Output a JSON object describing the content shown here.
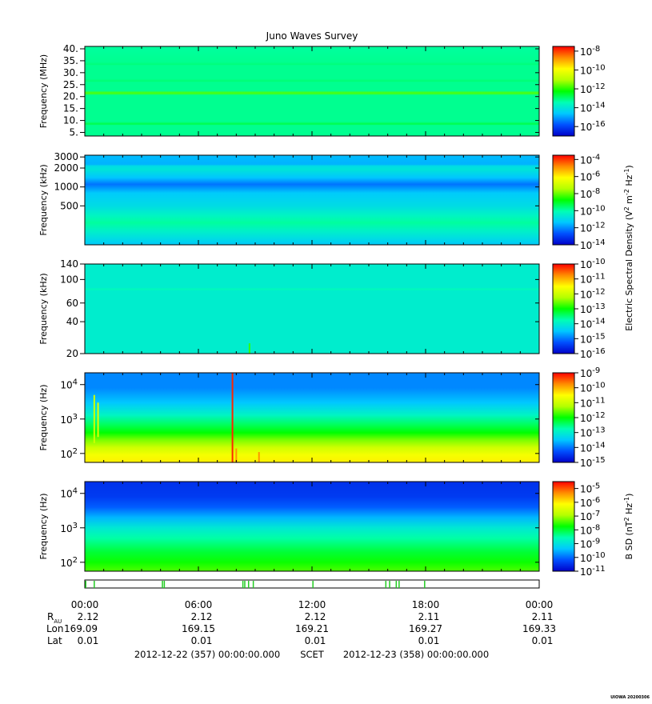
{
  "title": "Juno Waves Survey",
  "watermark": "UIOWA 20200306",
  "colorbar_labels": {
    "e_field": "Electric Spectral Density (V^2 m^-2 Hz^-1)",
    "b_field": "B SD (nT^2 Hz^-1)"
  },
  "palette": [
    "#0000c8",
    "#0050ff",
    "#00c8ff",
    "#00ffb4",
    "#00ff00",
    "#b4ff00",
    "#ffff00",
    "#ff8c00",
    "#ff0000"
  ],
  "chart_data": [
    {
      "type": "heatmap",
      "name": "panel-1",
      "ylabel": "Frequency (MHz)",
      "yscale": "linear",
      "ylim": [
        3.5,
        41
      ],
      "yticks": [
        {
          "v": 40,
          "t": "40."
        },
        {
          "v": 35,
          "t": "35."
        },
        {
          "v": 30,
          "t": "30."
        },
        {
          "v": 25,
          "t": "25."
        },
        {
          "v": 20,
          "t": "20."
        },
        {
          "v": 15,
          "t": "15."
        },
        {
          "v": 10,
          "t": "10."
        },
        {
          "v": 5,
          "t": "5."
        }
      ],
      "colorbar_range": [
        -17,
        -7.5
      ],
      "colorbar_ticks": [
        -8,
        -10,
        -12,
        -14,
        -16
      ],
      "colorbar_label": "",
      "profile": [
        {
          "f": 3.5,
          "v": -13.2
        },
        {
          "f": 8,
          "v": -13.2
        },
        {
          "f": 8.5,
          "v": -12.7
        },
        {
          "f": 9.5,
          "v": -13.2
        },
        {
          "f": 20.5,
          "v": -13.2
        },
        {
          "f": 21.5,
          "v": -11.7
        },
        {
          "f": 22.5,
          "v": -13.2
        },
        {
          "f": 26,
          "v": -13.2
        },
        {
          "f": 26.5,
          "v": -13.0
        },
        {
          "f": 27.5,
          "v": -13.2
        },
        {
          "f": 33,
          "v": -13.2
        },
        {
          "f": 33.5,
          "v": -13.05
        },
        {
          "f": 34.5,
          "v": -13.2
        },
        {
          "f": 41,
          "v": -13.3
        }
      ],
      "events": []
    },
    {
      "type": "heatmap",
      "name": "panel-2",
      "ylabel": "Frequency (kHz)",
      "yscale": "log",
      "ylim": [
        120,
        3200
      ],
      "yticks": [
        {
          "v": 3000,
          "t": "3000"
        },
        {
          "v": 2000,
          "t": "2000"
        },
        {
          "v": 1000,
          "t": "1000"
        },
        {
          "v": 500,
          "t": "500"
        }
      ],
      "colorbar_range": [
        -14,
        -3.5
      ],
      "colorbar_ticks": [
        -4,
        -6,
        -8,
        -10,
        -12,
        -14
      ],
      "colorbar_label": "e_field",
      "profile": [
        {
          "f": 120,
          "v": -11.3
        },
        {
          "f": 200,
          "v": -10.4
        },
        {
          "f": 270,
          "v": -9.9
        },
        {
          "f": 350,
          "v": -10.3
        },
        {
          "f": 500,
          "v": -10.9
        },
        {
          "f": 800,
          "v": -11.3
        },
        {
          "f": 1100,
          "v": -12.3
        },
        {
          "f": 1400,
          "v": -11.4
        },
        {
          "f": 1900,
          "v": -10.7
        },
        {
          "f": 2150,
          "v": -10.9
        },
        {
          "f": 2300,
          "v": -11.6
        },
        {
          "f": 3200,
          "v": -11.5
        }
      ],
      "events": []
    },
    {
      "type": "heatmap",
      "name": "panel-3",
      "ylabel": "Frequency (kHz)",
      "yscale": "log",
      "ylim": [
        20,
        140
      ],
      "yticks": [
        {
          "v": 140,
          "t": "140"
        },
        {
          "v": 100,
          "t": "100"
        },
        {
          "v": 60,
          "t": "60"
        },
        {
          "v": 40,
          "t": "40"
        },
        {
          "v": 20,
          "t": "20"
        }
      ],
      "colorbar_range": [
        -16,
        -10
      ],
      "colorbar_ticks": [
        -10,
        -11,
        -12,
        -13,
        -14,
        -15,
        -16
      ],
      "colorbar_label": "",
      "profile": [
        {
          "f": 20,
          "v": -14.0
        },
        {
          "f": 78,
          "v": -14.0
        },
        {
          "f": 81,
          "v": -13.8
        },
        {
          "f": 84,
          "v": -14.0
        },
        {
          "f": 140,
          "v": -14.0
        }
      ],
      "events": [
        {
          "t": 8.7,
          "fmin": 20,
          "fmax": 25,
          "v": -12.8
        }
      ]
    },
    {
      "type": "heatmap",
      "name": "panel-4",
      "ylabel": "Frequency (Hz)",
      "yscale": "log",
      "ylim": [
        55,
        22000
      ],
      "yticks": [
        {
          "v": 10000,
          "t": "10^4"
        },
        {
          "v": 1000,
          "t": "10^3"
        },
        {
          "v": 100,
          "t": "10^2"
        }
      ],
      "colorbar_range": [
        -15,
        -9
      ],
      "colorbar_ticks": [
        -9,
        -10,
        -11,
        -12,
        -13,
        -14,
        -15
      ],
      "colorbar_label": "",
      "profile": [
        {
          "f": 55,
          "v": -10.4
        },
        {
          "f": 90,
          "v": -10.6
        },
        {
          "f": 150,
          "v": -11.0
        },
        {
          "f": 250,
          "v": -11.5
        },
        {
          "f": 400,
          "v": -12.0
        },
        {
          "f": 700,
          "v": -12.4
        },
        {
          "f": 1300,
          "v": -12.9
        },
        {
          "f": 3000,
          "v": -13.5
        },
        {
          "f": 8000,
          "v": -13.9
        },
        {
          "f": 22000,
          "v": -13.9
        }
      ],
      "events": [
        {
          "t": 7.8,
          "fmin": 55,
          "fmax": 22000,
          "v": -9.2
        },
        {
          "t": 0.5,
          "fmin": 200,
          "fmax": 5000,
          "v": -11.0
        },
        {
          "t": 0.7,
          "fmin": 300,
          "fmax": 3000,
          "v": -10.8
        },
        {
          "t": 8.0,
          "fmin": 55,
          "fmax": 140,
          "v": -9.8
        },
        {
          "t": 9.2,
          "fmin": 55,
          "fmax": 110,
          "v": -9.8
        }
      ]
    },
    {
      "type": "heatmap",
      "name": "panel-5",
      "ylabel": "Frequency (Hz)",
      "yscale": "log",
      "ylim": [
        55,
        22000
      ],
      "yticks": [
        {
          "v": 10000,
          "t": "10^4"
        },
        {
          "v": 1000,
          "t": "10^3"
        },
        {
          "v": 100,
          "t": "10^2"
        }
      ],
      "colorbar_range": [
        -11,
        -4.5
      ],
      "colorbar_ticks": [
        -5,
        -6,
        -7,
        -8,
        -9,
        -10,
        -11
      ],
      "colorbar_label": "b_field",
      "profile": [
        {
          "f": 55,
          "v": -7.4
        },
        {
          "f": 100,
          "v": -7.7
        },
        {
          "f": 200,
          "v": -8.0
        },
        {
          "f": 500,
          "v": -8.5
        },
        {
          "f": 1000,
          "v": -8.9
        },
        {
          "f": 2000,
          "v": -9.5
        },
        {
          "f": 4000,
          "v": -10.1
        },
        {
          "f": 8000,
          "v": -10.4
        },
        {
          "f": 22000,
          "v": -10.5
        }
      ],
      "events": []
    }
  ],
  "mode_bar": {
    "ticks": [
      0.05,
      0.5,
      4.1,
      4.2,
      8.35,
      8.45,
      8.65,
      8.9,
      12.05,
      15.9,
      16.1,
      16.45,
      16.6,
      17.95
    ]
  },
  "time_axis": {
    "range": [
      0,
      24
    ],
    "ticks": [
      {
        "t": 0,
        "label": "00:00",
        "rau": "2.12",
        "lon": "169.09",
        "lat": "0.01"
      },
      {
        "t": 6,
        "label": "06:00",
        "rau": "2.12",
        "lon": "169.15",
        "lat": "0.01"
      },
      {
        "t": 12,
        "label": "12:00",
        "rau": "2.12",
        "lon": "169.21",
        "lat": "0.01"
      },
      {
        "t": 18,
        "label": "18:00",
        "rau": "2.11",
        "lon": "169.27",
        "lat": "0.01"
      },
      {
        "t": 24,
        "label": "00:00",
        "rau": "2.11",
        "lon": "169.33",
        "lat": "0.01"
      }
    ],
    "row_labels": {
      "rau_main": "R",
      "rau_sub": "AU",
      "lon": "Lon",
      "lat": "Lat"
    }
  },
  "footer": {
    "start": "2012-12-22 (357) 00:00:00.000",
    "scet": "SCET",
    "end": "2012-12-23 (358) 00:00:00.000"
  }
}
